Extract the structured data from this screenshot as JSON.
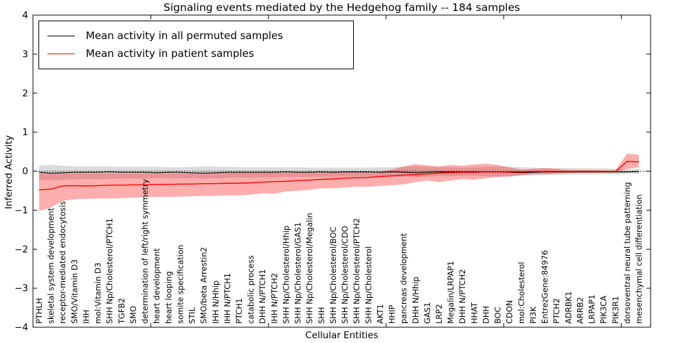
{
  "figure": {
    "title": "Signaling events mediated by the Hedgehog family -- 184 samples",
    "xlabel": "Cellular Entities",
    "ylabel": "Inferred Activity"
  },
  "legend": {
    "entries": [
      {
        "label": "Mean activity in all permuted samples",
        "color": "#000000"
      },
      {
        "label": "Mean activity in patient samples",
        "color": "#ff0000"
      }
    ]
  },
  "chart_data": {
    "type": "line",
    "title": "Signaling events mediated by the Hedgehog family -- 184 samples",
    "xlabel": "Cellular Entities",
    "ylabel": "Inferred Activity",
    "ylim": [
      -4,
      4
    ],
    "yticks": [
      -4,
      -3,
      -2,
      -1,
      0,
      1,
      2,
      3,
      4
    ],
    "zero_line": "dotted",
    "grid": false,
    "legend_position": "upper-left",
    "categories": [
      "PTHLH",
      "skeletal system development",
      "receptor-mediated endocytosis",
      "SMO/Vitamin D3",
      "IHH",
      "mol:Vitamin D3",
      "SHH Np/Cholesterol/PTCH1",
      "TGFB2",
      "SMO",
      "determination of left/right symmetry",
      "heart development",
      "heart looping",
      "somite specification",
      "STIL",
      "SMO/beta Arrestin2",
      "IHH N/Hhip",
      "IHH N/PTCH1",
      "PTCH1",
      "catabolic process",
      "DHH N/PTCH1",
      "IHH N/PTCH2",
      "SHH Np/Cholesterol/Hhip",
      "SHH Np/Cholesterol/GAS1",
      "SHH Np/Cholesterol/Megalin",
      "SHH",
      "SHH Np/Cholesterol/BOC",
      "SHH Np/Cholesterol/CDO",
      "SHH Np/Cholesterol/PTCH2",
      "SHH Np/Cholesterol",
      "AKT1",
      "HHIP",
      "pancreas development",
      "DHH N/Hhip",
      "GAS1",
      "LRP2",
      "Megalin/LRPAP1",
      "DHH N/PTCH2",
      "HHAT",
      "DHH",
      "BOC",
      "CDON",
      "mol:Cholesterol",
      "PI3K",
      "EntrezGene:84976",
      "PTCH2",
      "ADRBK1",
      "ARRB2",
      "LRPAP1",
      "PIK3CA",
      "PIK3R1",
      "dorsoventral neural tube patterning",
      "mesenchymal cell differentiation"
    ],
    "series": [
      {
        "name": "Mean activity in all permuted samples",
        "color": "#000000",
        "band_color": "#b0b0b0",
        "band_opacity": 0.45,
        "values": [
          -0.03,
          -0.05,
          -0.04,
          -0.03,
          -0.03,
          -0.03,
          -0.02,
          -0.03,
          -0.03,
          -0.03,
          -0.04,
          -0.03,
          -0.03,
          -0.04,
          -0.05,
          -0.04,
          -0.03,
          -0.03,
          -0.03,
          -0.03,
          -0.03,
          -0.02,
          -0.03,
          -0.03,
          -0.02,
          -0.03,
          -0.02,
          -0.02,
          -0.02,
          -0.03,
          -0.02,
          -0.03,
          -0.04,
          -0.03,
          -0.02,
          -0.02,
          -0.02,
          -0.02,
          -0.02,
          -0.02,
          -0.03,
          -0.04,
          -0.03,
          -0.02,
          -0.02,
          -0.02,
          -0.02,
          -0.02,
          -0.02,
          -0.02,
          -0.02,
          -0.01
        ],
        "band_upper": [
          0.14,
          0.16,
          0.14,
          0.12,
          0.12,
          0.12,
          0.12,
          0.11,
          0.11,
          0.11,
          0.11,
          0.1,
          0.1,
          0.11,
          0.12,
          0.12,
          0.11,
          0.1,
          0.1,
          0.1,
          0.1,
          0.1,
          0.1,
          0.09,
          0.09,
          0.09,
          0.09,
          0.09,
          0.09,
          0.1,
          0.1,
          0.12,
          0.12,
          0.11,
          0.1,
          0.1,
          0.09,
          0.1,
          0.11,
          0.12,
          0.11,
          0.1,
          0.09,
          0.08,
          0.08,
          0.08,
          0.07,
          0.07,
          0.07,
          0.06,
          0.06,
          0.06
        ],
        "band_lower": [
          -0.22,
          -0.23,
          -0.22,
          -0.21,
          -0.2,
          -0.2,
          -0.2,
          -0.19,
          -0.19,
          -0.19,
          -0.18,
          -0.18,
          -0.18,
          -0.18,
          -0.19,
          -0.18,
          -0.17,
          -0.16,
          -0.16,
          -0.16,
          -0.16,
          -0.15,
          -0.15,
          -0.15,
          -0.14,
          -0.14,
          -0.14,
          -0.14,
          -0.14,
          -0.14,
          -0.14,
          -0.15,
          -0.16,
          -0.14,
          -0.13,
          -0.13,
          -0.12,
          -0.12,
          -0.13,
          -0.14,
          -0.13,
          -0.12,
          -0.11,
          -0.1,
          -0.1,
          -0.09,
          -0.09,
          -0.08,
          -0.08,
          -0.08,
          -0.07,
          -0.07
        ]
      },
      {
        "name": "Mean activity in patient samples",
        "color": "#ff0000",
        "band_color": "#ff0000",
        "band_opacity": 0.32,
        "values": [
          -0.48,
          -0.46,
          -0.38,
          -0.37,
          -0.38,
          -0.37,
          -0.36,
          -0.36,
          -0.35,
          -0.35,
          -0.34,
          -0.34,
          -0.33,
          -0.33,
          -0.32,
          -0.32,
          -0.31,
          -0.31,
          -0.3,
          -0.28,
          -0.27,
          -0.26,
          -0.24,
          -0.23,
          -0.21,
          -0.2,
          -0.18,
          -0.17,
          -0.16,
          -0.14,
          -0.12,
          -0.1,
          -0.09,
          -0.07,
          -0.05,
          -0.04,
          -0.03,
          -0.03,
          -0.02,
          -0.02,
          -0.02,
          -0.02,
          -0.01,
          -0.01,
          -0.01,
          -0.01,
          -0.01,
          -0.01,
          -0.01,
          -0.01,
          0.25,
          0.24
        ],
        "band_upper": [
          -0.05,
          -0.05,
          -0.05,
          -0.05,
          -0.05,
          -0.05,
          -0.05,
          -0.05,
          -0.05,
          -0.05,
          -0.05,
          -0.05,
          -0.05,
          -0.05,
          -0.04,
          -0.04,
          -0.04,
          -0.04,
          -0.04,
          -0.04,
          -0.04,
          -0.04,
          -0.04,
          -0.04,
          -0.03,
          -0.03,
          -0.03,
          -0.03,
          -0.03,
          -0.02,
          0.04,
          0.12,
          0.18,
          0.15,
          0.12,
          0.16,
          0.14,
          0.17,
          0.19,
          0.16,
          0.1,
          0.04,
          0.06,
          0.08,
          0.06,
          0.03,
          0.03,
          0.03,
          0.02,
          0.02,
          0.45,
          0.42
        ],
        "band_lower": [
          -1.02,
          -0.93,
          -0.76,
          -0.72,
          -0.71,
          -0.7,
          -0.7,
          -0.69,
          -0.68,
          -0.67,
          -0.66,
          -0.66,
          -0.65,
          -0.64,
          -0.64,
          -0.63,
          -0.62,
          -0.62,
          -0.6,
          -0.57,
          -0.58,
          -0.52,
          -0.5,
          -0.48,
          -0.44,
          -0.44,
          -0.42,
          -0.4,
          -0.4,
          -0.38,
          -0.36,
          -0.34,
          -0.28,
          -0.24,
          -0.28,
          -0.24,
          -0.2,
          -0.22,
          -0.18,
          -0.15,
          -0.14,
          -0.1,
          -0.08,
          -0.08,
          -0.06,
          -0.05,
          -0.04,
          -0.04,
          -0.04,
          -0.03,
          0.06,
          0.1
        ]
      }
    ]
  }
}
